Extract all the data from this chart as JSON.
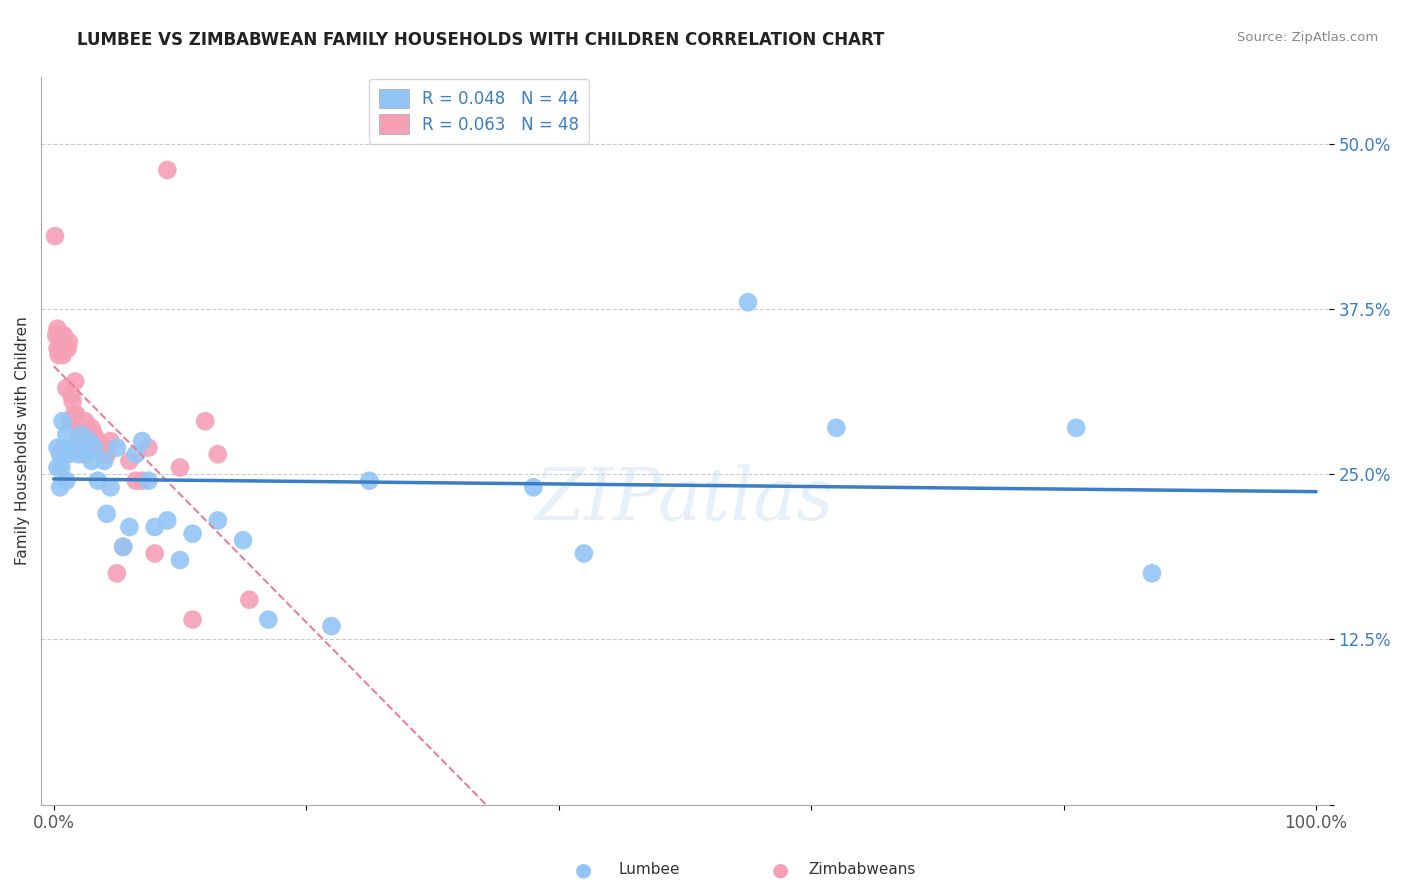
{
  "title": "LUMBEE VS ZIMBABWEAN FAMILY HOUSEHOLDS WITH CHILDREN CORRELATION CHART",
  "source": "Source: ZipAtlas.com",
  "ylabel": "Family Households with Children",
  "legend_lumbee": "R = 0.048   N = 44",
  "legend_zimbabweans": "R = 0.063   N = 48",
  "x_ticks": [
    0.0,
    0.2,
    0.4,
    0.6,
    0.8,
    1.0
  ],
  "x_tick_labels": [
    "0.0%",
    "",
    "",
    "",
    "",
    "100.0%"
  ],
  "y_ticks": [
    0.0,
    0.125,
    0.25,
    0.375,
    0.5
  ],
  "y_tick_labels": [
    "",
    "12.5%",
    "25.0%",
    "37.5%",
    "50.0%"
  ],
  "xlim": [
    -0.01,
    1.01
  ],
  "ylim": [
    0.0,
    0.55
  ],
  "watermark": "ZIPatlas",
  "lumbee_color": "#92C5F5",
  "zimbabwean_color": "#F5A0B5",
  "lumbee_line_color": "#3A7EC6",
  "zimbabwean_line_color": "#E8829A",
  "lumbee_x": [
    0.003,
    0.003,
    0.005,
    0.005,
    0.006,
    0.007,
    0.008,
    0.009,
    0.01,
    0.01,
    0.012,
    0.015,
    0.018,
    0.02,
    0.022,
    0.025,
    0.028,
    0.03,
    0.032,
    0.035,
    0.04,
    0.042,
    0.045,
    0.05,
    0.055,
    0.06,
    0.065,
    0.07,
    0.075,
    0.08,
    0.09,
    0.1,
    0.11,
    0.13,
    0.15,
    0.17,
    0.22,
    0.25,
    0.38,
    0.42,
    0.55,
    0.62,
    0.81,
    0.87
  ],
  "lumbee_y": [
    0.255,
    0.27,
    0.24,
    0.265,
    0.255,
    0.29,
    0.27,
    0.265,
    0.245,
    0.28,
    0.265,
    0.27,
    0.27,
    0.265,
    0.28,
    0.265,
    0.275,
    0.26,
    0.27,
    0.245,
    0.26,
    0.22,
    0.24,
    0.27,
    0.195,
    0.21,
    0.265,
    0.275,
    0.245,
    0.21,
    0.215,
    0.185,
    0.205,
    0.215,
    0.2,
    0.14,
    0.135,
    0.245,
    0.24,
    0.19,
    0.38,
    0.285,
    0.285,
    0.175
  ],
  "zimbabwean_x": [
    0.001,
    0.002,
    0.003,
    0.003,
    0.004,
    0.005,
    0.005,
    0.006,
    0.006,
    0.007,
    0.008,
    0.008,
    0.009,
    0.01,
    0.011,
    0.012,
    0.013,
    0.014,
    0.015,
    0.016,
    0.017,
    0.018,
    0.019,
    0.02,
    0.021,
    0.022,
    0.025,
    0.028,
    0.03,
    0.032,
    0.035,
    0.038,
    0.04,
    0.042,
    0.045,
    0.05,
    0.055,
    0.06,
    0.065,
    0.07,
    0.075,
    0.08,
    0.09,
    0.1,
    0.11,
    0.12,
    0.13,
    0.155
  ],
  "zimbabwean_y": [
    0.43,
    0.355,
    0.345,
    0.36,
    0.34,
    0.355,
    0.345,
    0.355,
    0.345,
    0.34,
    0.355,
    0.35,
    0.345,
    0.315,
    0.345,
    0.35,
    0.29,
    0.31,
    0.305,
    0.295,
    0.32,
    0.295,
    0.285,
    0.28,
    0.285,
    0.285,
    0.29,
    0.275,
    0.285,
    0.28,
    0.275,
    0.27,
    0.265,
    0.265,
    0.275,
    0.175,
    0.195,
    0.26,
    0.245,
    0.245,
    0.27,
    0.19,
    0.48,
    0.255,
    0.14,
    0.29,
    0.265,
    0.155
  ]
}
